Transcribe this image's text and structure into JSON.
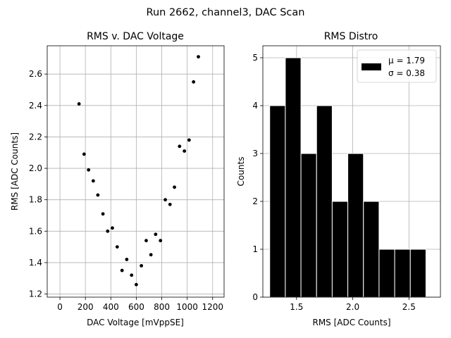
{
  "figure": {
    "suptitle": "Run 2662, channel3, DAC Scan"
  },
  "chart_data": [
    {
      "type": "scatter",
      "title": "RMS v. DAC Voltage",
      "xlabel": "DAC Voltage [mVppSE]",
      "ylabel": "RMS [ADC Counts]",
      "xlim": [
        -100,
        1290
      ],
      "ylim": [
        1.18,
        2.78
      ],
      "xticks": [
        0,
        200,
        400,
        600,
        800,
        1000,
        1200
      ],
      "yticks": [
        1.2,
        1.4,
        1.6,
        1.8,
        2.0,
        2.2,
        2.4,
        2.6
      ],
      "ytick_labels": [
        "1.2",
        "1.4",
        "1.6",
        "1.8",
        "2.0",
        "2.2",
        "2.4",
        "2.6"
      ],
      "grid": true,
      "marker_color": "#000000",
      "points": [
        [
          150,
          2.41
        ],
        [
          190,
          2.09
        ],
        [
          225,
          1.99
        ],
        [
          262,
          1.92
        ],
        [
          298,
          1.83
        ],
        [
          338,
          1.71
        ],
        [
          375,
          1.6
        ],
        [
          412,
          1.62
        ],
        [
          450,
          1.5
        ],
        [
          488,
          1.35
        ],
        [
          525,
          1.42
        ],
        [
          563,
          1.32
        ],
        [
          600,
          1.26
        ],
        [
          640,
          1.38
        ],
        [
          678,
          1.54
        ],
        [
          715,
          1.45
        ],
        [
          752,
          1.58
        ],
        [
          790,
          1.54
        ],
        [
          828,
          1.8
        ],
        [
          865,
          1.77
        ],
        [
          900,
          1.88
        ],
        [
          940,
          2.14
        ],
        [
          978,
          2.11
        ],
        [
          1015,
          2.18
        ],
        [
          1050,
          2.55
        ],
        [
          1088,
          2.71
        ]
      ]
    },
    {
      "type": "bar",
      "subtype": "histogram",
      "title": "RMS Distro",
      "xlabel": "RMS [ADC Counts]",
      "ylabel": "Counts",
      "xlim": [
        1.2,
        2.78
      ],
      "ylim": [
        0,
        5.25
      ],
      "xticks": [
        1.5,
        2.0,
        2.5
      ],
      "xtick_labels": [
        "1.5",
        "2.0",
        "2.5"
      ],
      "yticks": [
        0,
        1,
        2,
        3,
        4,
        5
      ],
      "grid": true,
      "bar_color": "#000000",
      "edge_color": "#ffffff",
      "bins": [
        [
          1.261,
          1.4,
          4
        ],
        [
          1.4,
          1.539,
          5
        ],
        [
          1.539,
          1.678,
          3
        ],
        [
          1.678,
          1.817,
          4
        ],
        [
          1.817,
          1.956,
          2
        ],
        [
          1.956,
          2.095,
          3
        ],
        [
          2.095,
          2.234,
          2
        ],
        [
          2.234,
          2.373,
          1
        ],
        [
          2.373,
          2.512,
          1
        ],
        [
          2.512,
          2.651,
          1
        ]
      ],
      "legend": {
        "position": "upper right",
        "line1": "μ = 1.79",
        "line2": "σ = 0.38"
      }
    }
  ]
}
